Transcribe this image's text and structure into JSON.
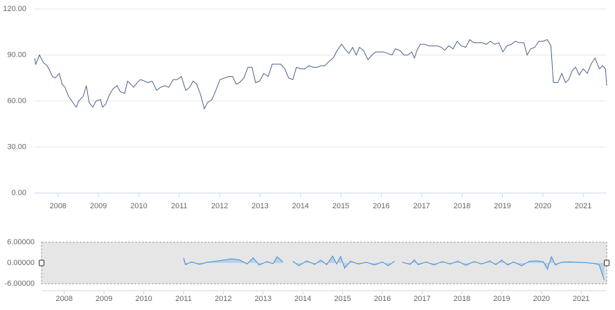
{
  "chart_data": [
    {
      "type": "line",
      "color": "#4a5f85",
      "grid": true,
      "xlim": [
        2007.42,
        2021.58
      ],
      "xticks": [
        2008,
        2009,
        2010,
        2011,
        2012,
        2013,
        2014,
        2015,
        2016,
        2017,
        2018,
        2019,
        2020,
        2021
      ],
      "ylim": [
        0,
        120
      ],
      "yticks": [
        {
          "value": 0,
          "label": "0.00"
        },
        {
          "value": 30,
          "label": "30.00"
        },
        {
          "value": 60,
          "label": "60.00"
        },
        {
          "value": 90,
          "label": "90.00"
        },
        {
          "value": 120,
          "label": "120.00"
        }
      ],
      "x": [
        2007.42,
        2007.45,
        2007.54,
        2007.64,
        2007.73,
        2007.81,
        2007.86,
        2007.93,
        2008.03,
        2008.1,
        2008.17,
        2008.26,
        2008.34,
        2008.45,
        2008.51,
        2008.62,
        2008.7,
        2008.77,
        2008.86,
        2008.94,
        2009.05,
        2009.1,
        2009.18,
        2009.27,
        2009.36,
        2009.46,
        2009.54,
        2009.65,
        2009.72,
        2009.8,
        2009.87,
        2009.96,
        2010.04,
        2010.14,
        2010.23,
        2010.33,
        2010.44,
        2010.54,
        2010.64,
        2010.74,
        2010.85,
        2010.95,
        2011.05,
        2011.16,
        2011.26,
        2011.34,
        2011.43,
        2011.53,
        2011.62,
        2011.7,
        2011.81,
        2011.89,
        2012.01,
        2012.12,
        2012.22,
        2012.32,
        2012.41,
        2012.49,
        2012.6,
        2012.7,
        2012.8,
        2012.89,
        2012.99,
        2013.09,
        2013.2,
        2013.3,
        2013.4,
        2013.51,
        2013.61,
        2013.71,
        2013.81,
        2013.9,
        2014.0,
        2014.11,
        2014.21,
        2014.31,
        2014.42,
        2014.5,
        2014.6,
        2014.71,
        2014.81,
        2014.91,
        2015.02,
        2015.1,
        2015.2,
        2015.29,
        2015.38,
        2015.46,
        2015.56,
        2015.67,
        2015.77,
        2015.86,
        2015.96,
        2016.06,
        2016.16,
        2016.27,
        2016.35,
        2016.46,
        2016.56,
        2016.66,
        2016.75,
        2016.82,
        2016.9,
        2016.97,
        2017.07,
        2017.18,
        2017.28,
        2017.38,
        2017.49,
        2017.57,
        2017.67,
        2017.78,
        2017.88,
        2017.98,
        2018.09,
        2018.19,
        2018.29,
        2018.39,
        2018.5,
        2018.6,
        2018.7,
        2018.81,
        2018.91,
        2019.01,
        2019.11,
        2019.22,
        2019.32,
        2019.42,
        2019.53,
        2019.61,
        2019.7,
        2019.8,
        2019.9,
        2020.01,
        2020.11,
        2020.2,
        2020.26,
        2020.37,
        2020.47,
        2020.56,
        2020.64,
        2020.73,
        2020.81,
        2020.9,
        2021.0,
        2021.1,
        2021.19,
        2021.29,
        2021.4,
        2021.48,
        2021.55,
        2021.58
      ],
      "values": [
        88,
        84,
        90,
        85,
        83,
        79,
        76,
        75,
        78,
        71,
        69,
        63,
        60,
        56,
        60,
        63,
        70,
        59,
        56,
        60,
        61,
        56,
        58,
        64,
        68,
        70,
        66,
        65,
        73,
        71,
        69,
        72,
        74,
        73,
        72,
        73,
        67,
        69,
        70,
        69,
        74,
        74,
        76,
        67,
        69,
        73,
        71,
        64,
        55,
        59,
        61,
        66,
        74,
        75,
        76,
        76,
        71,
        72,
        75,
        82,
        82,
        72,
        73,
        78,
        76,
        84,
        84,
        84,
        81,
        75,
        74,
        82,
        81,
        81,
        83,
        82,
        82,
        83,
        83,
        86,
        88,
        93,
        97,
        94,
        91,
        95,
        90,
        95,
        93,
        87,
        90,
        92,
        92,
        92,
        91,
        90,
        94,
        93,
        90,
        90,
        92,
        88,
        94,
        97,
        97,
        96,
        96,
        96,
        95,
        93,
        96,
        94,
        99,
        96,
        95,
        100,
        98,
        98,
        98,
        97,
        99,
        97,
        98,
        92,
        96,
        97,
        99,
        98,
        98,
        90,
        94,
        95,
        99,
        99,
        100,
        96,
        72,
        72,
        78,
        72,
        74,
        80,
        82,
        77,
        81,
        78,
        84,
        88,
        81,
        83,
        81,
        70
      ]
    },
    {
      "type": "area",
      "color": "#3a8ee0",
      "xlim": [
        2007.43,
        2021.64
      ],
      "xticks": [
        2008,
        2009,
        2010,
        2011,
        2012,
        2013,
        2014,
        2015,
        2016,
        2017,
        2018,
        2019,
        2020,
        2021
      ],
      "ylim": [
        -6,
        6
      ],
      "yticks": [
        {
          "value": -6,
          "label": "-6.00000"
        },
        {
          "value": 0,
          "label": "0.00000"
        },
        {
          "value": 6,
          "label": "6.00000"
        }
      ],
      "x": [
        2011.0,
        2011.05,
        2011.2,
        2011.4,
        2011.6,
        2011.8,
        2012.0,
        2012.2,
        2012.4,
        2012.6,
        2012.75,
        2012.9,
        2013.1,
        2013.25,
        2013.35,
        2013.5,
        2013.6,
        2013.75,
        2013.9,
        2014.1,
        2014.3,
        2014.45,
        2014.6,
        2014.75,
        2014.85,
        2014.95,
        2015.05,
        2015.2,
        2015.4,
        2015.6,
        2015.8,
        2016.0,
        2016.15,
        2016.3,
        2016.4,
        2016.5,
        2016.7,
        2016.8,
        2016.9,
        2017.1,
        2017.3,
        2017.5,
        2017.7,
        2017.9,
        2018.1,
        2018.3,
        2018.5,
        2018.7,
        2018.85,
        2019.0,
        2019.15,
        2019.3,
        2019.5,
        2019.7,
        2019.9,
        2020.05,
        2020.15,
        2020.25,
        2020.35,
        2020.5,
        2020.7,
        2020.9,
        2021.1,
        2021.3,
        2021.45,
        2021.58
      ],
      "values": [
        1.5,
        -0.5,
        0.3,
        -0.4,
        0.2,
        0.5,
        0.8,
        1.2,
        0.9,
        -0.3,
        1.5,
        -0.6,
        0.4,
        -0.2,
        1.8,
        0.3,
        null,
        0.5,
        -0.8,
        0.6,
        -0.4,
        0.8,
        -0.5,
        2.0,
        -0.3,
        1.9,
        -1.5,
        0.5,
        -0.3,
        0.2,
        -0.6,
        0.3,
        -0.8,
        0.5,
        null,
        0.2,
        -0.4,
        0.9,
        -0.5,
        0.3,
        -0.6,
        0.4,
        -0.3,
        0.5,
        -0.7,
        0.4,
        -0.3,
        0.6,
        -0.5,
        0.8,
        -0.6,
        0.3,
        -0.8,
        0.5,
        0.6,
        0.3,
        -1.8,
        1.8,
        -0.6,
        0.2,
        0.3,
        0.2,
        0.1,
        -0.1,
        -0.5,
        -5.0
      ]
    }
  ]
}
